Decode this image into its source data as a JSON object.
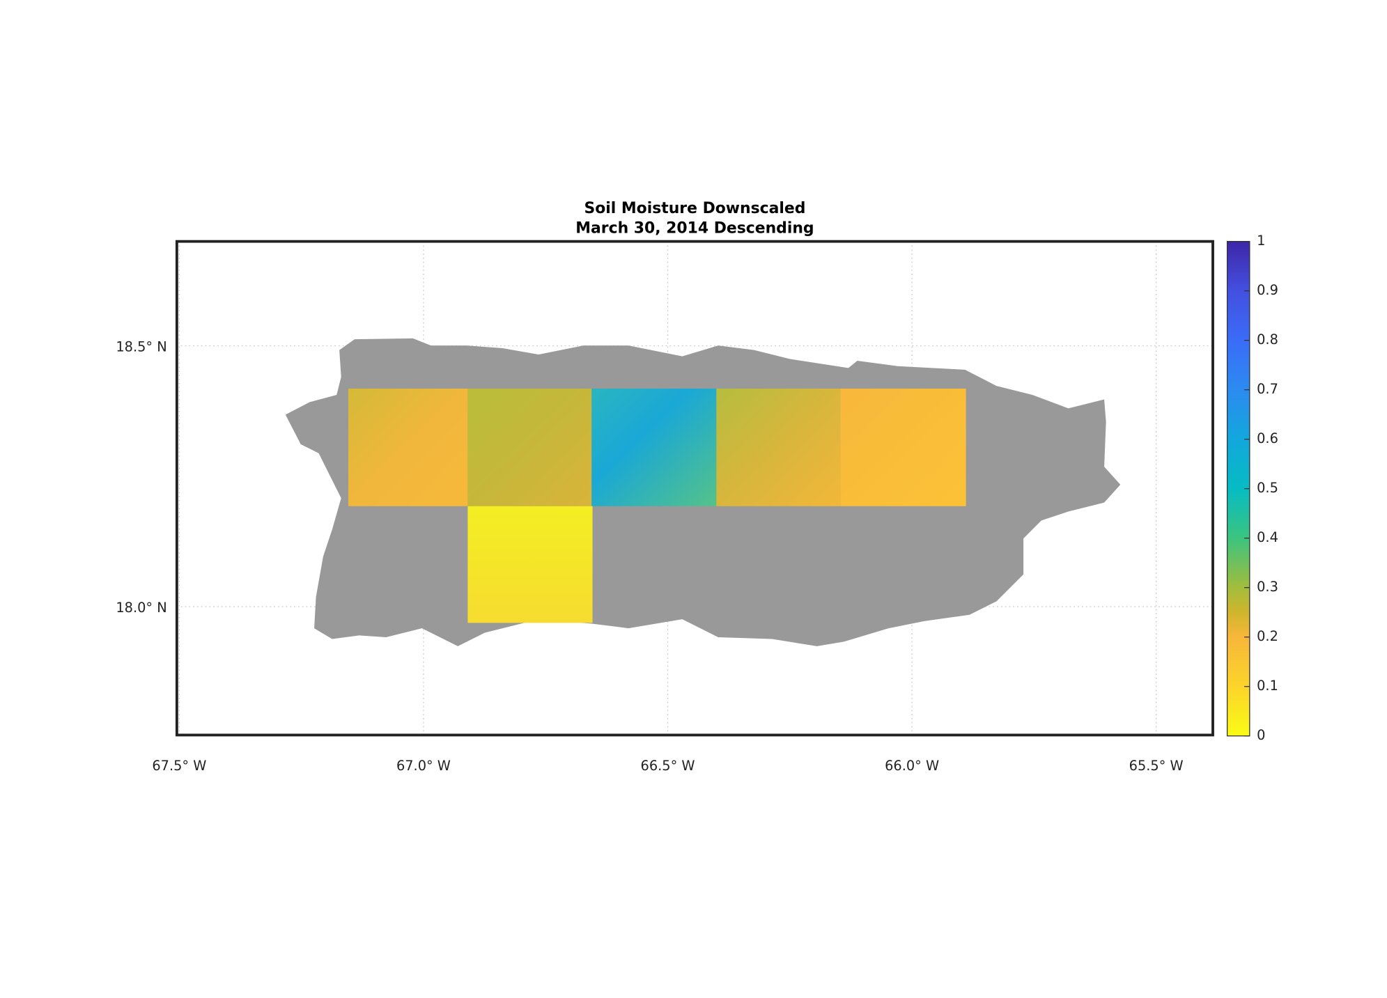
{
  "chart_data": {
    "type": "map",
    "title": "Soil Moisture Downscaled",
    "subtitle": "March 30, 2014 Descending",
    "xlim": [
      -67.505,
      -65.384
    ],
    "ylim": [
      17.754,
      18.7
    ],
    "xticks": [
      {
        "value": -67.5,
        "label": "67.5° W"
      },
      {
        "value": -67.0,
        "label": "67.0° W"
      },
      {
        "value": -66.5,
        "label": "66.5° W"
      },
      {
        "value": -66.0,
        "label": "66.0° W"
      },
      {
        "value": -65.5,
        "label": "65.5° W"
      }
    ],
    "yticks": [
      {
        "value": 18.0,
        "label": "18.0° N"
      },
      {
        "value": 18.5,
        "label": "18.5° N"
      }
    ],
    "colorbar_lim": [
      0,
      1
    ],
    "colorbar_ticks": [
      0,
      0.1,
      0.2,
      0.3,
      0.4,
      0.5,
      0.6,
      0.7,
      0.8,
      0.9,
      1
    ],
    "grid": true
  }
}
